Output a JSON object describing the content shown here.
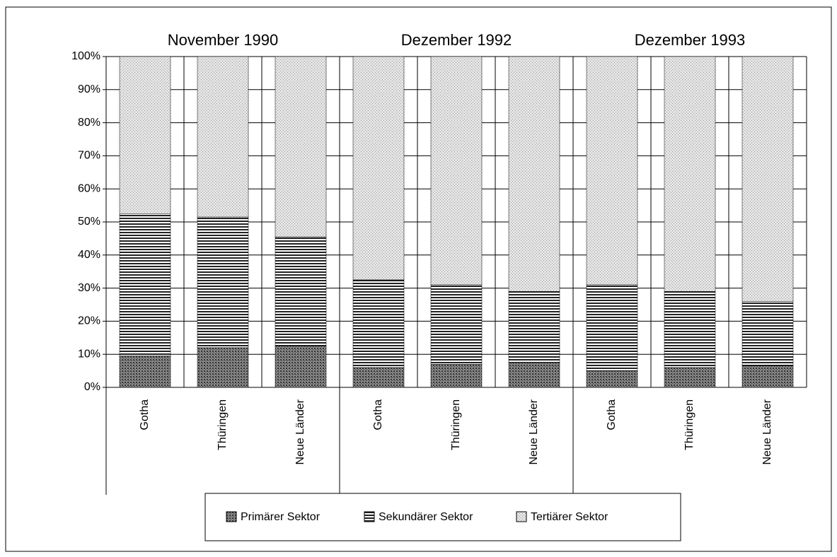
{
  "chart_data": {
    "type": "stacked_bar_100",
    "groups": [
      "November 1990",
      "Dezember 1992",
      "Dezember 1993"
    ],
    "categories": [
      "Gotha",
      "Thüringen",
      "Neue Länder",
      "Gotha",
      "Thüringen",
      "Neue Länder",
      "Gotha",
      "Thüringen",
      "Neue Länder"
    ],
    "series": [
      {
        "name": "Primärer Sektor",
        "color": "#333333",
        "values": [
          9.5,
          12,
          12.5,
          6,
          7,
          7.5,
          5,
          6,
          6.5
        ]
      },
      {
        "name": "Sekundärer Sektor",
        "color": "#222222",
        "values": [
          43,
          39.5,
          33,
          26.5,
          24,
          21.5,
          26,
          23,
          19.5
        ]
      },
      {
        "name": "Tertiärer Sektor",
        "color": "#9a9a9a",
        "values": [
          47.5,
          48.5,
          54.5,
          67.5,
          69,
          71,
          69,
          71,
          74
        ]
      }
    ],
    "ylim": [
      0,
      100
    ],
    "yticks": [
      {
        "value": 0,
        "label": "0%"
      },
      {
        "value": 10,
        "label": "10%"
      },
      {
        "value": 20,
        "label": "20%"
      },
      {
        "value": 30,
        "label": "30%"
      },
      {
        "value": 40,
        "label": "40%"
      },
      {
        "value": 50,
        "label": "50%"
      },
      {
        "value": 60,
        "label": "60%"
      },
      {
        "value": 70,
        "label": "70%"
      },
      {
        "value": 80,
        "label": "80%"
      },
      {
        "value": 90,
        "label": "90%"
      },
      {
        "value": 100,
        "label": "100%"
      }
    ],
    "grid": true,
    "legend": "bottom"
  }
}
